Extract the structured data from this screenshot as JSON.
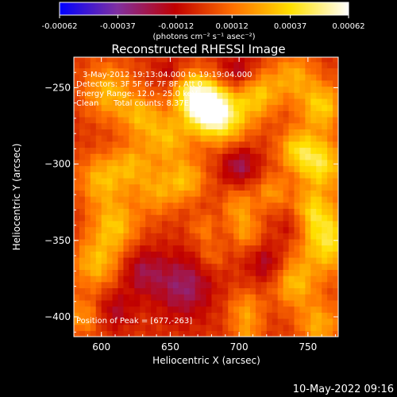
{
  "chart_data": {
    "type": "heatmap",
    "title": "Reconstructed RHESSI Image",
    "xlabel": "Heliocentric X (arcsec)",
    "ylabel": "Heliocentric Y (arcsec)",
    "xlim": [
      580,
      772
    ],
    "ylim": [
      -413,
      -230
    ],
    "x_ticks": [
      600,
      650,
      700,
      750
    ],
    "y_ticks": [
      -250,
      -300,
      -350,
      -400
    ],
    "colorbar": {
      "range": [
        -0.00062,
        0.00062
      ],
      "ticks": [
        "-0.00062",
        "-0.00037",
        "-0.00012",
        "0.00012",
        "0.00037",
        "0.00062"
      ],
      "unit_label": "(photons cm⁻² s⁻¹ asec⁻²)"
    },
    "annotations": {
      "time_range": "3-May-2012 19:13:04.000 to 19:19:04.000",
      "detectors": "Detectors: 3F 5F 6F 7F 8F, Att 0",
      "energy": "Energy Range: 12.0 - 25.0 keV",
      "method": "Clean",
      "counts": "Total counts: 8.37E+03",
      "peak": "Position of Peak = [677,-263]"
    },
    "peak_position": [
      677,
      -263
    ],
    "footer_timestamp": "10-May-2022 09:16",
    "color_stops": [
      "#0000ff",
      "#8030a0",
      "#c00000",
      "#ff7000",
      "#ffe000",
      "#ffffff"
    ],
    "blobs": [
      {
        "x": 676,
        "y": -262,
        "r": 11,
        "v": 0.00062
      },
      {
        "x": 690,
        "y": -270,
        "r": 13,
        "v": 0.00038
      },
      {
        "x": 664,
        "y": -252,
        "r": 10,
        "v": 0.00032
      },
      {
        "x": 605,
        "y": -252,
        "r": 13,
        "v": 0.0003
      },
      {
        "x": 628,
        "y": -268,
        "r": 10,
        "v": 0.00026
      },
      {
        "x": 648,
        "y": -283,
        "r": 12,
        "v": 0.0003
      },
      {
        "x": 714,
        "y": -254,
        "r": 11,
        "v": 0.00032
      },
      {
        "x": 740,
        "y": -242,
        "r": 11,
        "v": 0.00026
      },
      {
        "x": 760,
        "y": -262,
        "r": 11,
        "v": 0.00036
      },
      {
        "x": 742,
        "y": -290,
        "r": 10,
        "v": 0.00032
      },
      {
        "x": 760,
        "y": -300,
        "r": 12,
        "v": 0.0004
      },
      {
        "x": 765,
        "y": -350,
        "r": 15,
        "v": 0.00042
      },
      {
        "x": 752,
        "y": -330,
        "r": 10,
        "v": 0.00028
      },
      {
        "x": 600,
        "y": -310,
        "r": 12,
        "v": 0.0003
      },
      {
        "x": 610,
        "y": -340,
        "r": 12,
        "v": 0.00032
      },
      {
        "x": 622,
        "y": -300,
        "r": 10,
        "v": 0.00024
      },
      {
        "x": 596,
        "y": -365,
        "r": 12,
        "v": 0.0003
      },
      {
        "x": 640,
        "y": -318,
        "r": 11,
        "v": 0.00024
      },
      {
        "x": 662,
        "y": -310,
        "r": 10,
        "v": 0.00028
      },
      {
        "x": 700,
        "y": -328,
        "r": 9,
        "v": 0.00022
      },
      {
        "x": 724,
        "y": -318,
        "r": 8,
        "v": 0.00022
      },
      {
        "x": 705,
        "y": -345,
        "r": 8,
        "v": 0.0002
      },
      {
        "x": 674,
        "y": -342,
        "r": 7,
        "v": 0.00016
      },
      {
        "x": 740,
        "y": -378,
        "r": 11,
        "v": 0.0003
      },
      {
        "x": 758,
        "y": -405,
        "r": 11,
        "v": 0.00028
      },
      {
        "x": 705,
        "y": -395,
        "r": 9,
        "v": 0.00022
      },
      {
        "x": 706,
        "y": -412,
        "r": 8,
        "v": 0.00018
      },
      {
        "x": 680,
        "y": -360,
        "r": 7,
        "v": 0.00014
      },
      {
        "x": 586,
        "y": -400,
        "r": 9,
        "v": 0.00022
      },
      {
        "x": 700,
        "y": -300,
        "r": 9,
        "v": -0.00024
      },
      {
        "x": 660,
        "y": -380,
        "r": 14,
        "v": -0.00026
      },
      {
        "x": 630,
        "y": -370,
        "r": 11,
        "v": -0.0002
      },
      {
        "x": 700,
        "y": -240,
        "r": 9,
        "v": -0.0002
      },
      {
        "x": 740,
        "y": -340,
        "r": 8,
        "v": -0.00016
      },
      {
        "x": 720,
        "y": -365,
        "r": 9,
        "v": -0.00018
      },
      {
        "x": 650,
        "y": -240,
        "r": 7,
        "v": -0.00014
      },
      {
        "x": 610,
        "y": -395,
        "r": 9,
        "v": -0.00016
      }
    ]
  }
}
